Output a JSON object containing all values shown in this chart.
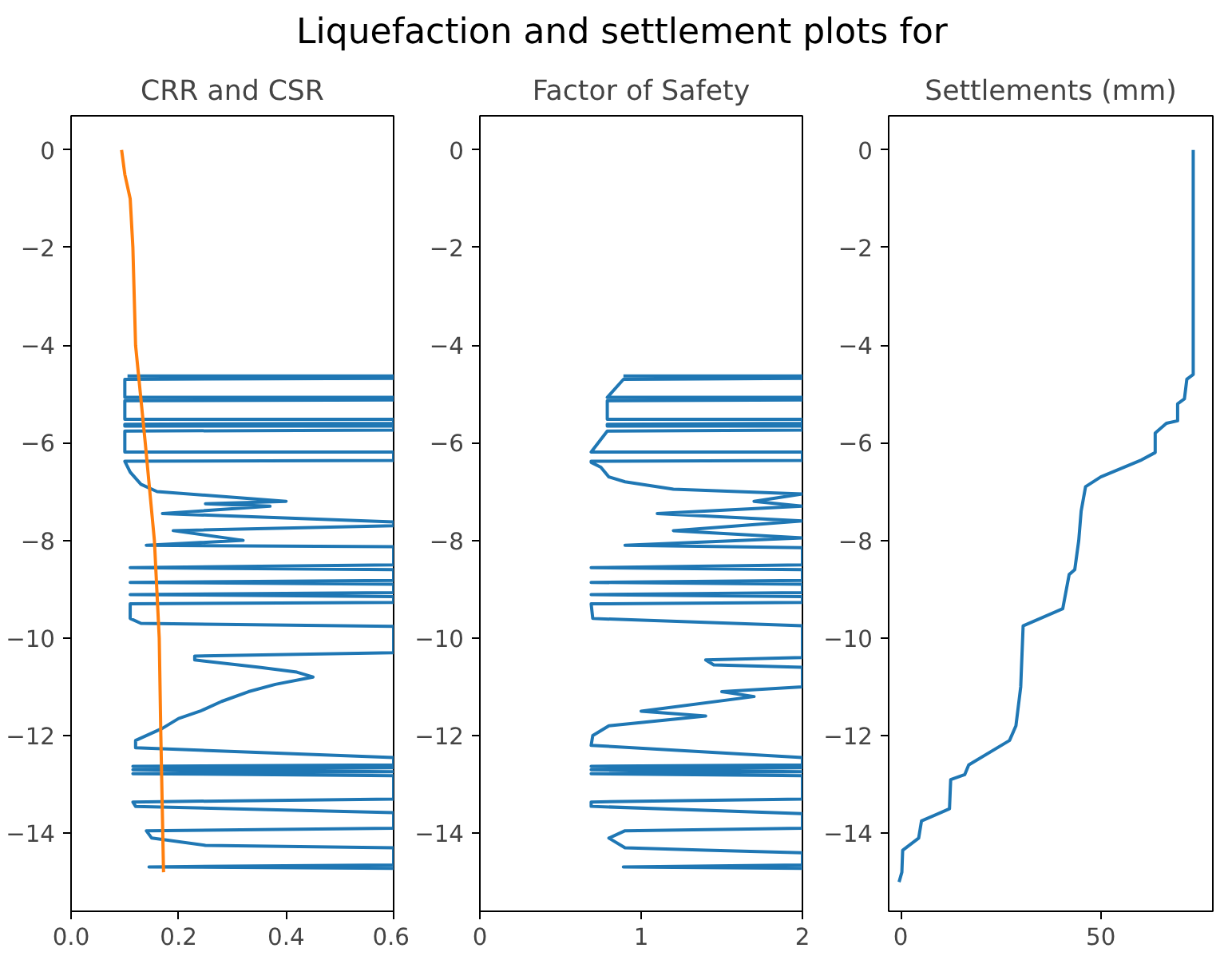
{
  "chart_data": [
    {
      "type": "line",
      "title": "CRR and CSR",
      "annotations": [
        "Liquefaction and settlement plots for"
      ],
      "xlim": [
        0,
        0.6
      ],
      "ylim": [
        -15.6,
        0.7
      ],
      "xticks": [
        {
          "value": 0,
          "label": "0.0"
        },
        {
          "value": 0.2,
          "label": "0.2"
        },
        {
          "value": 0.4,
          "label": "0.4"
        },
        {
          "value": 0.6,
          "label": "0.6"
        }
      ],
      "yticks": [
        0,
        {
          "value": -2,
          "label": "−2"
        },
        {
          "value": -4,
          "label": "−4"
        },
        {
          "value": -6,
          "label": "−6"
        },
        {
          "value": -8,
          "label": "−8"
        },
        {
          "value": -10,
          "label": "−10"
        },
        {
          "value": -12,
          "label": "−12"
        },
        {
          "value": -14,
          "label": "−14"
        }
      ],
      "grid": false,
      "series": [
        {
          "color": "#1f77b4",
          "x": [
            0.105,
            0.6,
            0.6,
            0.1,
            0.1,
            0.6,
            0.6,
            0.1,
            0.1,
            0.6,
            0.6,
            0.1,
            0.1,
            0.6,
            0.6,
            0.1,
            0.1,
            0.6,
            0.6,
            0.1,
            0.11,
            0.13,
            0.16,
            0.4,
            0.25,
            0.37,
            0.17,
            0.6,
            0.6,
            0.19,
            0.32,
            0.14,
            0.6,
            0.6,
            0.11,
            0.6,
            0.6,
            0.11,
            0.6,
            0.6,
            0.11,
            0.6,
            0.6,
            0.11,
            0.11,
            0.13,
            0.6,
            0.6,
            0.23,
            0.23,
            0.35,
            0.42,
            0.45,
            0.38,
            0.33,
            0.28,
            0.24,
            0.2,
            0.17,
            0.12,
            0.12,
            0.6,
            0.6,
            0.115,
            0.6,
            0.115,
            0.6,
            0.115,
            0.6,
            0.6,
            0.115,
            0.12,
            0.6,
            0.6,
            0.14,
            0.15,
            0.25,
            0.6,
            0.6,
            0.145,
            0.6
          ],
          "values": [
            -4.63,
            -4.63,
            -4.68,
            -4.7,
            -5.07,
            -5.07,
            -5.12,
            -5.14,
            -5.52,
            -5.52,
            -5.6,
            -5.62,
            -5.66,
            -5.66,
            -5.74,
            -5.76,
            -6.19,
            -6.19,
            -6.36,
            -6.38,
            -6.6,
            -6.85,
            -7.0,
            -7.2,
            -7.25,
            -7.3,
            -7.45,
            -7.62,
            -7.7,
            -7.8,
            -8.0,
            -8.1,
            -8.13,
            -8.5,
            -8.56,
            -8.6,
            -8.82,
            -8.86,
            -8.9,
            -9.07,
            -9.11,
            -9.15,
            -9.27,
            -9.3,
            -9.6,
            -9.7,
            -9.76,
            -10.3,
            -10.37,
            -10.45,
            -10.6,
            -10.7,
            -10.8,
            -10.95,
            -11.1,
            -11.3,
            -11.5,
            -11.65,
            -11.85,
            -12.1,
            -12.25,
            -12.45,
            -12.6,
            -12.63,
            -12.66,
            -12.7,
            -12.74,
            -12.78,
            -12.82,
            -13.3,
            -13.36,
            -13.45,
            -13.58,
            -13.9,
            -13.95,
            -14.1,
            -14.25,
            -14.3,
            -14.65,
            -14.69,
            -14.72
          ]
        },
        {
          "color": "#ff7f0e",
          "x": [
            0.094,
            0.1,
            0.11,
            0.115,
            0.12,
            0.138,
            0.155,
            0.164,
            0.167,
            0.172
          ],
          "values": [
            0,
            -0.5,
            -1,
            -2,
            -4,
            -6,
            -8,
            -10,
            -12,
            -14.8
          ]
        }
      ]
    },
    {
      "type": "line",
      "title": "Factor of Safety",
      "xlim": [
        0,
        2
      ],
      "ylim": [
        -15.6,
        0.7
      ],
      "xticks": [
        0,
        1,
        2
      ],
      "yticks": [
        0,
        {
          "value": -2,
          "label": "−2"
        },
        {
          "value": -4,
          "label": "−4"
        },
        {
          "value": -6,
          "label": "−6"
        },
        {
          "value": -8,
          "label": "−8"
        },
        {
          "value": -10,
          "label": "−10"
        },
        {
          "value": -12,
          "label": "−12"
        },
        {
          "value": -14,
          "label": "−14"
        }
      ],
      "grid": false,
      "series": [
        {
          "color": "#1f77b4",
          "x": [
            0.89,
            2,
            2,
            0.89,
            0.79,
            2,
            2,
            0.79,
            0.79,
            2,
            2,
            0.79,
            0.79,
            2,
            2,
            0.79,
            0.69,
            2,
            2,
            0.69,
            0.69,
            0.75,
            0.8,
            0.9,
            1.2,
            2,
            1.7,
            2,
            1.1,
            2,
            1.2,
            2,
            0.9,
            2,
            2,
            0.69,
            2,
            2,
            0.69,
            2,
            2,
            0.69,
            2,
            2,
            0.69,
            0.7,
            2,
            2,
            1.4,
            1.45,
            2,
            2,
            1.5,
            1.7,
            1.0,
            1.4,
            0.8,
            0.7,
            0.69,
            2,
            2,
            0.69,
            2,
            0.69,
            2,
            0.69,
            2,
            2,
            0.69,
            0.69,
            2,
            2,
            0.9,
            0.8,
            0.9,
            1.4,
            2,
            2,
            0.89,
            2
          ],
          "values": [
            -4.63,
            -4.63,
            -4.68,
            -4.7,
            -5.07,
            -5.07,
            -5.12,
            -5.14,
            -5.52,
            -5.52,
            -5.6,
            -5.62,
            -5.66,
            -5.66,
            -5.74,
            -5.76,
            -6.19,
            -6.19,
            -6.36,
            -6.38,
            -6.4,
            -6.5,
            -6.7,
            -6.8,
            -6.95,
            -7.05,
            -7.2,
            -7.3,
            -7.45,
            -7.6,
            -7.8,
            -7.95,
            -8.1,
            -8.15,
            -8.5,
            -8.56,
            -8.6,
            -8.82,
            -8.86,
            -8.9,
            -9.07,
            -9.11,
            -9.15,
            -9.27,
            -9.3,
            -9.6,
            -9.75,
            -10.4,
            -10.45,
            -10.55,
            -10.6,
            -11.0,
            -11.1,
            -11.2,
            -11.5,
            -11.6,
            -11.8,
            -12.0,
            -12.2,
            -12.45,
            -12.6,
            -12.63,
            -12.66,
            -12.7,
            -12.74,
            -12.78,
            -12.82,
            -13.3,
            -13.36,
            -13.45,
            -13.6,
            -13.9,
            -13.95,
            -14.1,
            -14.3,
            -14.35,
            -14.4,
            -14.65,
            -14.69,
            -14.72
          ]
        }
      ]
    },
    {
      "type": "line",
      "title": "Settlements (mm)",
      "xlim": [
        -3,
        78
      ],
      "ylim": [
        -15.6,
        0.7
      ],
      "xticks": [
        0,
        50
      ],
      "yticks": [
        0,
        {
          "value": -2,
          "label": "−2"
        },
        {
          "value": -4,
          "label": "−4"
        },
        {
          "value": -6,
          "label": "−6"
        },
        {
          "value": -8,
          "label": "−8"
        },
        {
          "value": -10,
          "label": "−10"
        },
        {
          "value": -12,
          "label": "−12"
        },
        {
          "value": -14,
          "label": "−14"
        }
      ],
      "grid": false,
      "series": [
        {
          "color": "#1f77b4",
          "x": [
            73.1,
            73.1,
            71.5,
            70.9,
            69.2,
            69.2,
            66.4,
            63.6,
            63.6,
            60.2,
            50,
            46.2,
            45.1,
            44.5,
            43.5,
            42.1,
            40.5,
            30.6,
            30,
            28.8,
            27.2,
            17,
            16,
            12.5,
            12.2,
            5.2,
            4.5,
            0.5,
            0.3,
            -0.4
          ],
          "values": [
            0,
            -4.6,
            -4.7,
            -5.1,
            -5.2,
            -5.55,
            -5.6,
            -5.8,
            -6.2,
            -6.35,
            -6.7,
            -6.9,
            -7.4,
            -8.0,
            -8.6,
            -8.7,
            -9.4,
            -9.75,
            -11.0,
            -11.8,
            -12.1,
            -12.6,
            -12.8,
            -12.9,
            -13.5,
            -13.75,
            -14.1,
            -14.35,
            -14.8,
            -15.0
          ]
        }
      ]
    }
  ]
}
